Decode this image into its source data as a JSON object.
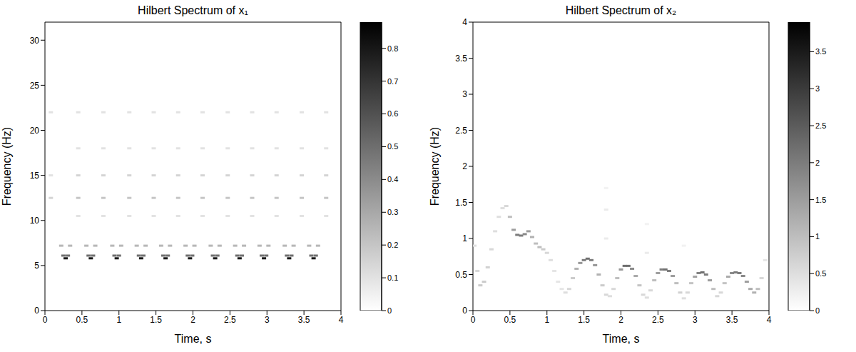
{
  "chart_data": [
    {
      "type": "scatter",
      "title": "Hilbert Spectrum of x₁",
      "xlabel": "Time, s",
      "ylabel": "Frequency (Hz)",
      "xlim": [
        0,
        4
      ],
      "xticks": [
        0,
        0.5,
        1,
        1.5,
        2,
        2.5,
        3,
        3.5,
        4
      ],
      "ylim": [
        0,
        32
      ],
      "yticks": [
        0,
        5,
        10,
        15,
        20,
        25,
        30
      ],
      "grid": false,
      "colorbar_range": [
        0,
        0.88
      ],
      "colorbar_ticks": [
        0,
        0.1,
        0.2,
        0.3,
        0.4,
        0.5,
        0.6,
        0.7,
        0.8
      ],
      "points": [
        [
          0.08,
          12.5,
          0.15
        ],
        [
          0.08,
          15,
          0.1
        ],
        [
          0.08,
          22,
          0.1
        ],
        [
          0.22,
          7.2,
          0.25
        ],
        [
          0.25,
          6.1,
          0.5
        ],
        [
          0.28,
          5.8,
          0.8
        ],
        [
          0.31,
          6.1,
          0.5
        ],
        [
          0.34,
          7.2,
          0.25
        ],
        [
          0.45,
          10.5,
          0.1
        ],
        [
          0.45,
          12.5,
          0.2
        ],
        [
          0.45,
          15,
          0.15
        ],
        [
          0.45,
          18,
          0.1
        ],
        [
          0.45,
          22,
          0.1
        ],
        [
          0.56,
          7.2,
          0.25
        ],
        [
          0.59,
          6.1,
          0.5
        ],
        [
          0.62,
          5.8,
          0.8
        ],
        [
          0.65,
          6.1,
          0.5
        ],
        [
          0.68,
          7.2,
          0.25
        ],
        [
          0.79,
          10.5,
          0.1
        ],
        [
          0.79,
          12.5,
          0.2
        ],
        [
          0.79,
          15,
          0.15
        ],
        [
          0.79,
          18,
          0.1
        ],
        [
          0.79,
          22,
          0.1
        ],
        [
          0.91,
          7.2,
          0.25
        ],
        [
          0.94,
          6.1,
          0.5
        ],
        [
          0.97,
          5.8,
          0.8
        ],
        [
          1.0,
          6.1,
          0.5
        ],
        [
          1.03,
          7.2,
          0.25
        ],
        [
          1.14,
          10.5,
          0.1
        ],
        [
          1.14,
          12.5,
          0.2
        ],
        [
          1.14,
          15,
          0.15
        ],
        [
          1.14,
          18,
          0.1
        ],
        [
          1.14,
          22,
          0.1
        ],
        [
          1.24,
          7.2,
          0.25
        ],
        [
          1.27,
          6.1,
          0.5
        ],
        [
          1.3,
          5.8,
          0.8
        ],
        [
          1.33,
          6.1,
          0.5
        ],
        [
          1.36,
          7.2,
          0.25
        ],
        [
          1.47,
          10.5,
          0.1
        ],
        [
          1.47,
          12.5,
          0.2
        ],
        [
          1.47,
          15,
          0.15
        ],
        [
          1.47,
          18,
          0.1
        ],
        [
          1.47,
          22,
          0.1
        ],
        [
          1.57,
          7.2,
          0.25
        ],
        [
          1.6,
          6.1,
          0.5
        ],
        [
          1.63,
          5.8,
          0.8
        ],
        [
          1.66,
          6.1,
          0.5
        ],
        [
          1.69,
          7.2,
          0.25
        ],
        [
          1.8,
          10.5,
          0.1
        ],
        [
          1.8,
          12.5,
          0.2
        ],
        [
          1.8,
          15,
          0.15
        ],
        [
          1.8,
          18,
          0.1
        ],
        [
          1.8,
          22,
          0.1
        ],
        [
          1.9,
          7.2,
          0.25
        ],
        [
          1.93,
          6.1,
          0.5
        ],
        [
          1.96,
          5.8,
          0.8
        ],
        [
          1.99,
          6.1,
          0.5
        ],
        [
          2.02,
          7.2,
          0.25
        ],
        [
          2.13,
          10.5,
          0.1
        ],
        [
          2.13,
          12.5,
          0.2
        ],
        [
          2.13,
          15,
          0.15
        ],
        [
          2.13,
          18,
          0.1
        ],
        [
          2.13,
          22,
          0.1
        ],
        [
          2.24,
          7.2,
          0.25
        ],
        [
          2.27,
          6.1,
          0.5
        ],
        [
          2.3,
          5.8,
          0.8
        ],
        [
          2.33,
          6.1,
          0.5
        ],
        [
          2.36,
          7.2,
          0.25
        ],
        [
          2.47,
          10.5,
          0.1
        ],
        [
          2.47,
          12.5,
          0.2
        ],
        [
          2.47,
          15,
          0.15
        ],
        [
          2.47,
          18,
          0.1
        ],
        [
          2.47,
          22,
          0.1
        ],
        [
          2.57,
          7.2,
          0.25
        ],
        [
          2.6,
          6.1,
          0.5
        ],
        [
          2.63,
          5.8,
          0.8
        ],
        [
          2.66,
          6.1,
          0.5
        ],
        [
          2.69,
          7.2,
          0.25
        ],
        [
          2.8,
          10.5,
          0.1
        ],
        [
          2.8,
          12.5,
          0.2
        ],
        [
          2.8,
          15,
          0.15
        ],
        [
          2.8,
          18,
          0.1
        ],
        [
          2.8,
          22,
          0.1
        ],
        [
          2.9,
          7.2,
          0.25
        ],
        [
          2.93,
          6.1,
          0.5
        ],
        [
          2.96,
          5.8,
          0.8
        ],
        [
          2.99,
          6.1,
          0.5
        ],
        [
          3.02,
          7.2,
          0.25
        ],
        [
          3.13,
          10.5,
          0.1
        ],
        [
          3.13,
          12.5,
          0.2
        ],
        [
          3.13,
          15,
          0.15
        ],
        [
          3.13,
          18,
          0.1
        ],
        [
          3.13,
          22,
          0.1
        ],
        [
          3.24,
          7.2,
          0.25
        ],
        [
          3.27,
          6.1,
          0.5
        ],
        [
          3.3,
          5.8,
          0.8
        ],
        [
          3.33,
          6.1,
          0.5
        ],
        [
          3.36,
          7.2,
          0.25
        ],
        [
          3.47,
          10.5,
          0.1
        ],
        [
          3.47,
          12.5,
          0.2
        ],
        [
          3.47,
          15,
          0.15
        ],
        [
          3.47,
          18,
          0.1
        ],
        [
          3.47,
          22,
          0.1
        ],
        [
          3.57,
          7.2,
          0.25
        ],
        [
          3.6,
          6.1,
          0.5
        ],
        [
          3.63,
          5.8,
          0.8
        ],
        [
          3.66,
          6.1,
          0.5
        ],
        [
          3.69,
          7.2,
          0.25
        ],
        [
          3.8,
          10.5,
          0.1
        ],
        [
          3.8,
          12.5,
          0.2
        ],
        [
          3.8,
          15,
          0.15
        ],
        [
          3.8,
          18,
          0.1
        ],
        [
          3.8,
          22,
          0.1
        ]
      ]
    },
    {
      "type": "scatter",
      "title": "Hilbert Spectrum of x₂",
      "xlabel": "Time, s",
      "ylabel": "Frequency (Hz)",
      "xlim": [
        0,
        4
      ],
      "xticks": [
        0,
        0.5,
        1,
        1.5,
        2,
        2.5,
        3,
        3.5,
        4
      ],
      "ylim": [
        0,
        4
      ],
      "yticks": [
        0,
        0.5,
        1,
        1.5,
        2,
        2.5,
        3,
        3.5,
        4
      ],
      "grid": false,
      "colorbar_range": [
        0,
        3.9
      ],
      "colorbar_ticks": [
        0,
        0.5,
        1,
        1.5,
        2,
        2.5,
        3,
        3.5
      ],
      "points": [
        [
          0.02,
          0.9,
          0.5
        ],
        [
          0.06,
          0.55,
          0.6
        ],
        [
          0.1,
          0.35,
          0.8
        ],
        [
          0.15,
          0.4,
          0.8
        ],
        [
          0.2,
          0.6,
          0.7
        ],
        [
          0.25,
          0.85,
          0.6
        ],
        [
          0.3,
          1.1,
          0.5
        ],
        [
          0.35,
          1.3,
          0.5
        ],
        [
          0.4,
          1.42,
          0.5
        ],
        [
          0.45,
          1.45,
          0.6
        ],
        [
          0.5,
          1.3,
          1.0
        ],
        [
          0.55,
          1.12,
          1.5
        ],
        [
          0.6,
          1.05,
          2.0
        ],
        [
          0.65,
          1.04,
          2.0
        ],
        [
          0.7,
          1.06,
          1.8
        ],
        [
          0.75,
          1.1,
          1.5
        ],
        [
          0.8,
          1.02,
          1.2
        ],
        [
          0.85,
          0.93,
          1.0
        ],
        [
          0.9,
          0.88,
          1.0
        ],
        [
          0.95,
          0.85,
          0.8
        ],
        [
          1.0,
          0.8,
          0.6
        ],
        [
          1.05,
          0.7,
          0.5
        ],
        [
          1.1,
          0.55,
          0.4
        ],
        [
          1.15,
          0.4,
          0.4
        ],
        [
          1.2,
          0.3,
          0.4
        ],
        [
          1.25,
          0.25,
          0.5
        ],
        [
          1.3,
          0.3,
          0.6
        ],
        [
          1.35,
          0.45,
          0.8
        ],
        [
          1.4,
          0.58,
          1.2
        ],
        [
          1.45,
          0.66,
          1.6
        ],
        [
          1.5,
          0.7,
          2.0
        ],
        [
          1.55,
          0.72,
          2.2
        ],
        [
          1.6,
          0.7,
          2.0
        ],
        [
          1.65,
          0.63,
          1.6
        ],
        [
          1.7,
          0.5,
          1.2
        ],
        [
          1.75,
          0.35,
          0.8
        ],
        [
          1.8,
          0.22,
          0.6
        ],
        [
          1.85,
          0.2,
          0.5
        ],
        [
          1.9,
          0.3,
          0.6
        ],
        [
          1.95,
          0.45,
          1.0
        ],
        [
          2.0,
          0.57,
          1.6
        ],
        [
          2.05,
          0.62,
          2.2
        ],
        [
          2.1,
          0.62,
          2.2
        ],
        [
          2.15,
          0.58,
          1.8
        ],
        [
          2.2,
          0.48,
          1.3
        ],
        [
          2.25,
          0.35,
          0.9
        ],
        [
          2.3,
          0.22,
          0.6
        ],
        [
          2.35,
          0.18,
          0.5
        ],
        [
          2.4,
          0.28,
          0.6
        ],
        [
          2.45,
          0.42,
          1.0
        ],
        [
          2.5,
          0.52,
          1.5
        ],
        [
          2.55,
          0.57,
          2.0
        ],
        [
          2.6,
          0.57,
          2.2
        ],
        [
          2.65,
          0.55,
          2.0
        ],
        [
          2.7,
          0.48,
          1.5
        ],
        [
          2.75,
          0.38,
          1.0
        ],
        [
          2.8,
          0.25,
          0.7
        ],
        [
          2.85,
          0.17,
          0.5
        ],
        [
          2.9,
          0.25,
          0.6
        ],
        [
          2.95,
          0.38,
          0.9
        ],
        [
          3.0,
          0.47,
          1.4
        ],
        [
          3.05,
          0.52,
          1.9
        ],
        [
          3.1,
          0.53,
          2.2
        ],
        [
          3.15,
          0.5,
          2.0
        ],
        [
          3.2,
          0.42,
          1.5
        ],
        [
          3.25,
          0.3,
          1.0
        ],
        [
          3.3,
          0.2,
          0.6
        ],
        [
          3.35,
          0.25,
          0.6
        ],
        [
          3.4,
          0.38,
          0.9
        ],
        [
          3.45,
          0.47,
          1.3
        ],
        [
          3.5,
          0.52,
          1.8
        ],
        [
          3.55,
          0.53,
          2.0
        ],
        [
          3.6,
          0.52,
          2.0
        ],
        [
          3.65,
          0.48,
          1.8
        ],
        [
          3.7,
          0.4,
          1.5
        ],
        [
          3.75,
          0.3,
          1.3
        ],
        [
          3.8,
          0.25,
          1.2
        ],
        [
          3.85,
          0.3,
          1.0
        ],
        [
          3.9,
          0.45,
          0.6
        ],
        [
          3.95,
          0.7,
          0.4
        ],
        [
          1.8,
          1.0,
          0.3
        ],
        [
          1.8,
          1.4,
          0.3
        ],
        [
          1.8,
          1.7,
          0.2
        ],
        [
          2.35,
          0.8,
          0.3
        ],
        [
          2.35,
          1.2,
          0.2
        ],
        [
          2.85,
          0.9,
          0.2
        ]
      ]
    }
  ]
}
